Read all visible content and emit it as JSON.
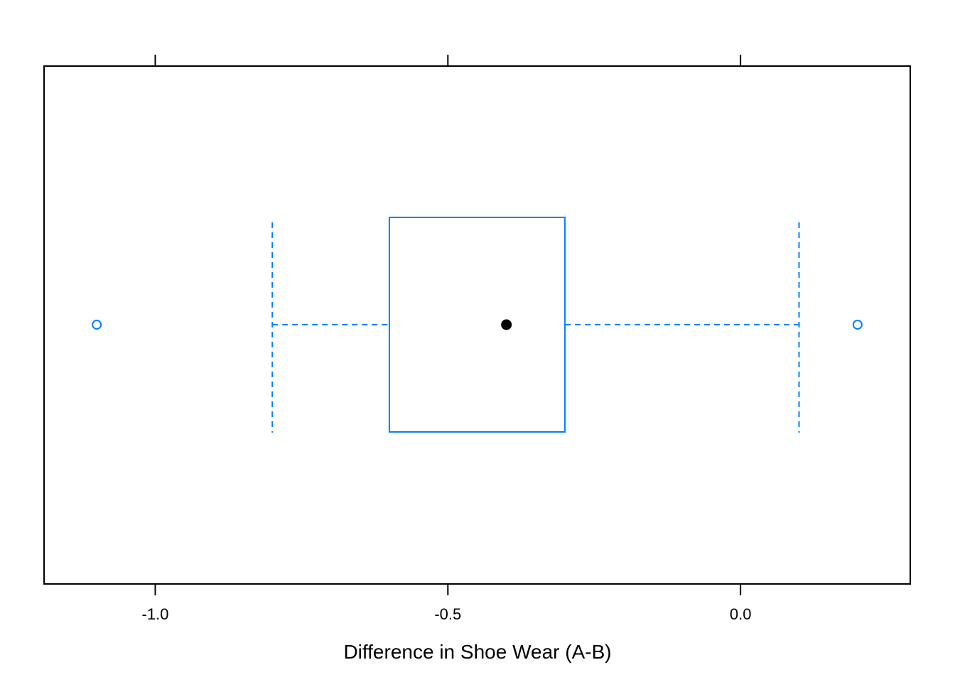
{
  "chart_data": {
    "type": "boxplot",
    "title": "",
    "xlabel": "Difference in Shoe Wear (A-B)",
    "ylabel": "",
    "xlim": [
      -1.19,
      0.29
    ],
    "x_ticks": [
      -1.0,
      -0.5,
      0.0
    ],
    "x_tick_labels": [
      "-1.0",
      "-0.5",
      "0.0"
    ],
    "grid": false,
    "box": {
      "whisker_low": -0.8,
      "q1": -0.6,
      "median": -0.4,
      "q3": -0.3,
      "whisker_high": 0.1
    },
    "outliers": [
      -1.1,
      0.2
    ],
    "colors": {
      "box": "#0080ff",
      "median_marker": "#000000",
      "axes": "#000000"
    }
  }
}
